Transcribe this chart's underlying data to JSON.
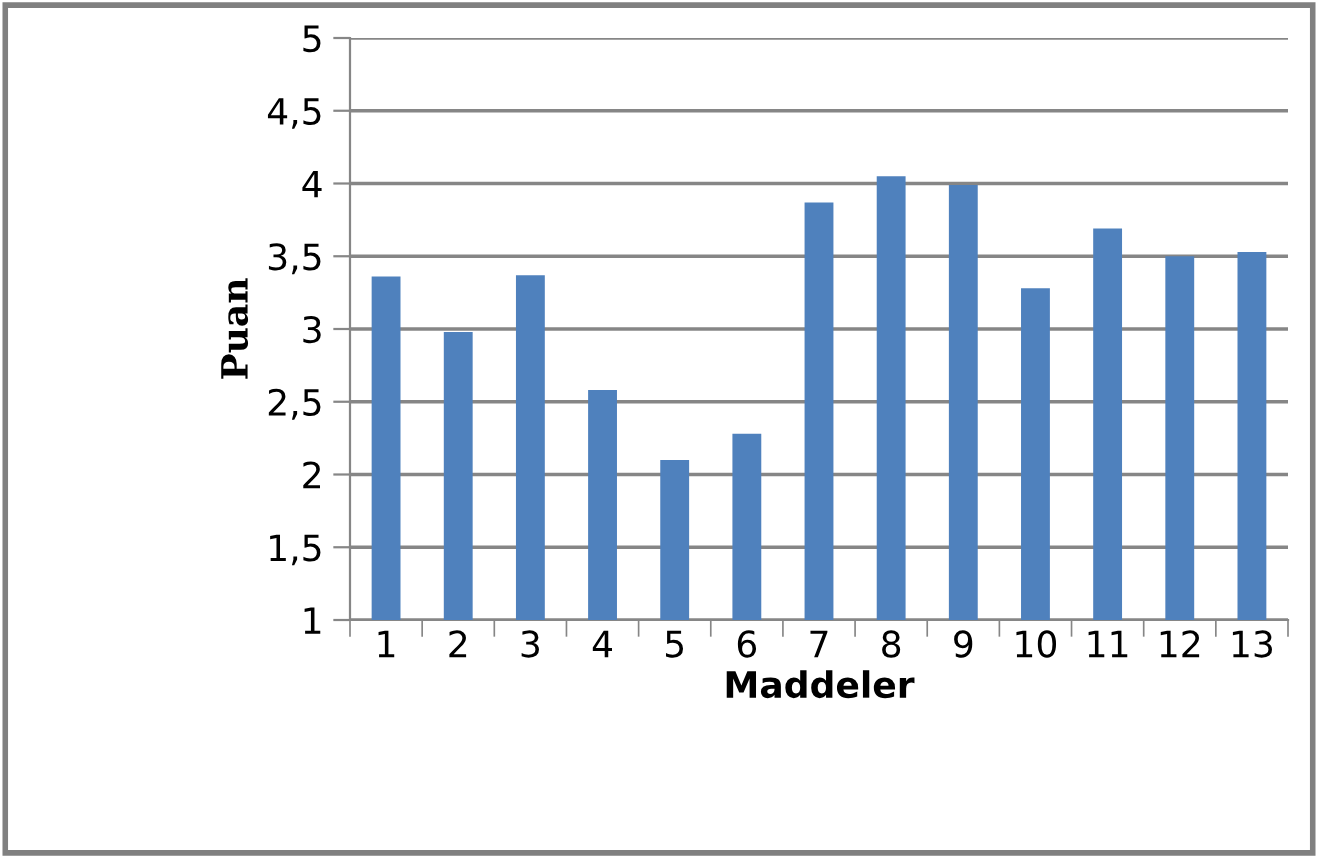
{
  "chart_data": {
    "type": "bar",
    "xlabel": "Maddeler",
    "ylabel": "Puan",
    "categories": [
      "1",
      "2",
      "3",
      "4",
      "5",
      "6",
      "7",
      "8",
      "9",
      "10",
      "11",
      "12",
      "13"
    ],
    "values": [
      3.36,
      2.98,
      3.37,
      2.58,
      2.1,
      2.28,
      3.87,
      4.05,
      3.99,
      3.28,
      3.69,
      3.5,
      3.53
    ],
    "color": "#4f81bd",
    "ylim": [
      1,
      5
    ],
    "yticks": [
      {
        "value": 1,
        "label": "1"
      },
      {
        "value": 1.5,
        "label": "1,5"
      },
      {
        "value": 2,
        "label": "2"
      },
      {
        "value": 2.5,
        "label": "2,5"
      },
      {
        "value": 3,
        "label": "3"
      },
      {
        "value": 3.5,
        "label": "3,5"
      },
      {
        "value": 4,
        "label": "4"
      },
      {
        "value": 4.5,
        "label": "4,5"
      },
      {
        "value": 5,
        "label": "5"
      }
    ],
    "grid": "y",
    "legend": false
  }
}
